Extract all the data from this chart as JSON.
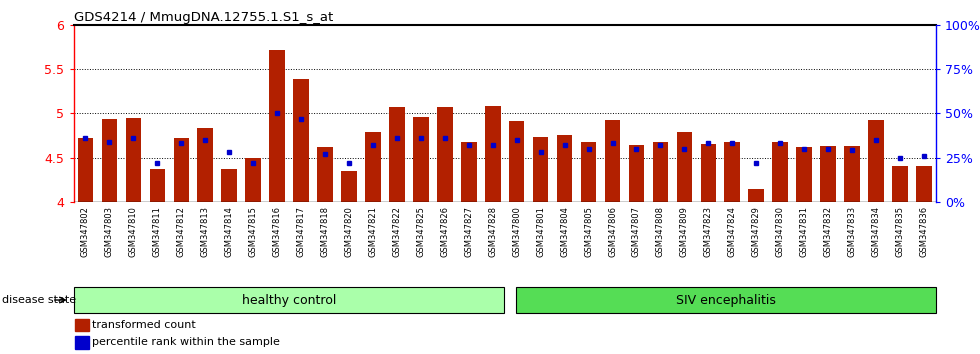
{
  "title": "GDS4214 / MmugDNA.12755.1.S1_s_at",
  "samples": [
    "GSM347802",
    "GSM347803",
    "GSM347810",
    "GSM347811",
    "GSM347812",
    "GSM347813",
    "GSM347814",
    "GSM347815",
    "GSM347816",
    "GSM347817",
    "GSM347818",
    "GSM347820",
    "GSM347821",
    "GSM347822",
    "GSM347825",
    "GSM347826",
    "GSM347827",
    "GSM347828",
    "GSM347800",
    "GSM347801",
    "GSM347804",
    "GSM347805",
    "GSM347806",
    "GSM347807",
    "GSM347808",
    "GSM347809",
    "GSM347823",
    "GSM347824",
    "GSM347829",
    "GSM347830",
    "GSM347831",
    "GSM347832",
    "GSM347833",
    "GSM347834",
    "GSM347835",
    "GSM347836"
  ],
  "bar_values": [
    4.72,
    4.93,
    4.95,
    4.37,
    4.72,
    4.83,
    4.37,
    4.49,
    5.72,
    5.39,
    4.62,
    4.35,
    4.79,
    5.07,
    4.96,
    5.07,
    4.68,
    5.08,
    4.91,
    4.73,
    4.75,
    4.68,
    4.92,
    4.64,
    4.68,
    4.79,
    4.65,
    4.67,
    4.14,
    4.67,
    4.62,
    4.63,
    4.63,
    4.92,
    4.4,
    4.4
  ],
  "percentile_values": [
    36,
    34,
    36,
    22,
    33,
    35,
    28,
    22,
    50,
    47,
    27,
    22,
    32,
    36,
    36,
    36,
    32,
    32,
    35,
    28,
    32,
    30,
    33,
    30,
    32,
    30,
    33,
    33,
    22,
    33,
    30,
    30,
    29,
    35,
    25,
    26
  ],
  "healthy_count": 18,
  "healthy_label": "healthy control",
  "siv_label": "SIV encephalitis",
  "bar_color": "#B22000",
  "percentile_color": "#0000CC",
  "ymin": 4.0,
  "ymax": 6.0,
  "yticks": [
    4.0,
    4.5,
    5.0,
    5.5,
    6.0
  ],
  "right_yticks": [
    0,
    25,
    50,
    75,
    100
  ],
  "right_yticklabels": [
    "0%",
    "25%",
    "50%",
    "75%",
    "100%"
  ],
  "disease_state_label": "disease state",
  "legend_bar_label": "transformed count",
  "legend_percentile_label": "percentile rank within the sample",
  "healthy_color": "#AAFFAA",
  "siv_color": "#55DD55",
  "ticklabel_bg": "#CCCCCC"
}
